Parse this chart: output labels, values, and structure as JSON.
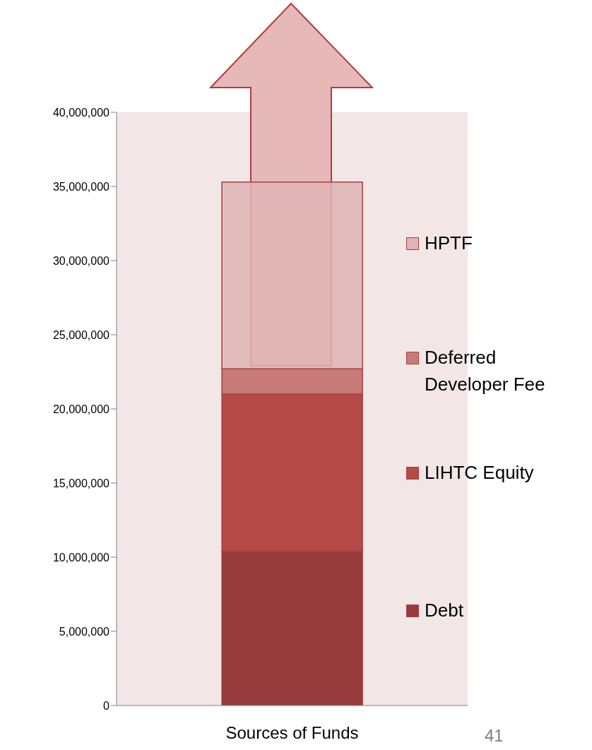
{
  "chart_data": {
    "type": "bar",
    "stacked": true,
    "categories": [
      "Sources of Funds"
    ],
    "series": [
      {
        "name": "Debt",
        "color": "#963b3b",
        "values": [
          10400000
        ]
      },
      {
        "name": "LIHTC Equity",
        "color": "#b44b48",
        "values": [
          10600000
        ]
      },
      {
        "name": "Deferred Developer Fee",
        "color": "#c87a78",
        "values": [
          1700000
        ]
      },
      {
        "name": "HPTF",
        "color": "#dfb4b4",
        "values": [
          12600000
        ]
      }
    ],
    "ylim": [
      0,
      40000000
    ],
    "yticks": [
      0,
      {
        "value": 5000000,
        "label": "5,000,000"
      },
      {
        "value": 10000000,
        "label": "10,000,000"
      },
      {
        "value": 15000000,
        "label": "15,000,000"
      },
      {
        "value": 20000000,
        "label": "20,000,000"
      },
      {
        "value": 25000000,
        "label": "25,000,000"
      },
      {
        "value": 30000000,
        "label": "30,000,000"
      },
      {
        "value": 35000000,
        "label": "35,000,000"
      },
      {
        "value": 40000000,
        "label": "40,000,000"
      }
    ],
    "legend": "right",
    "annotations": [
      "41"
    ]
  }
}
